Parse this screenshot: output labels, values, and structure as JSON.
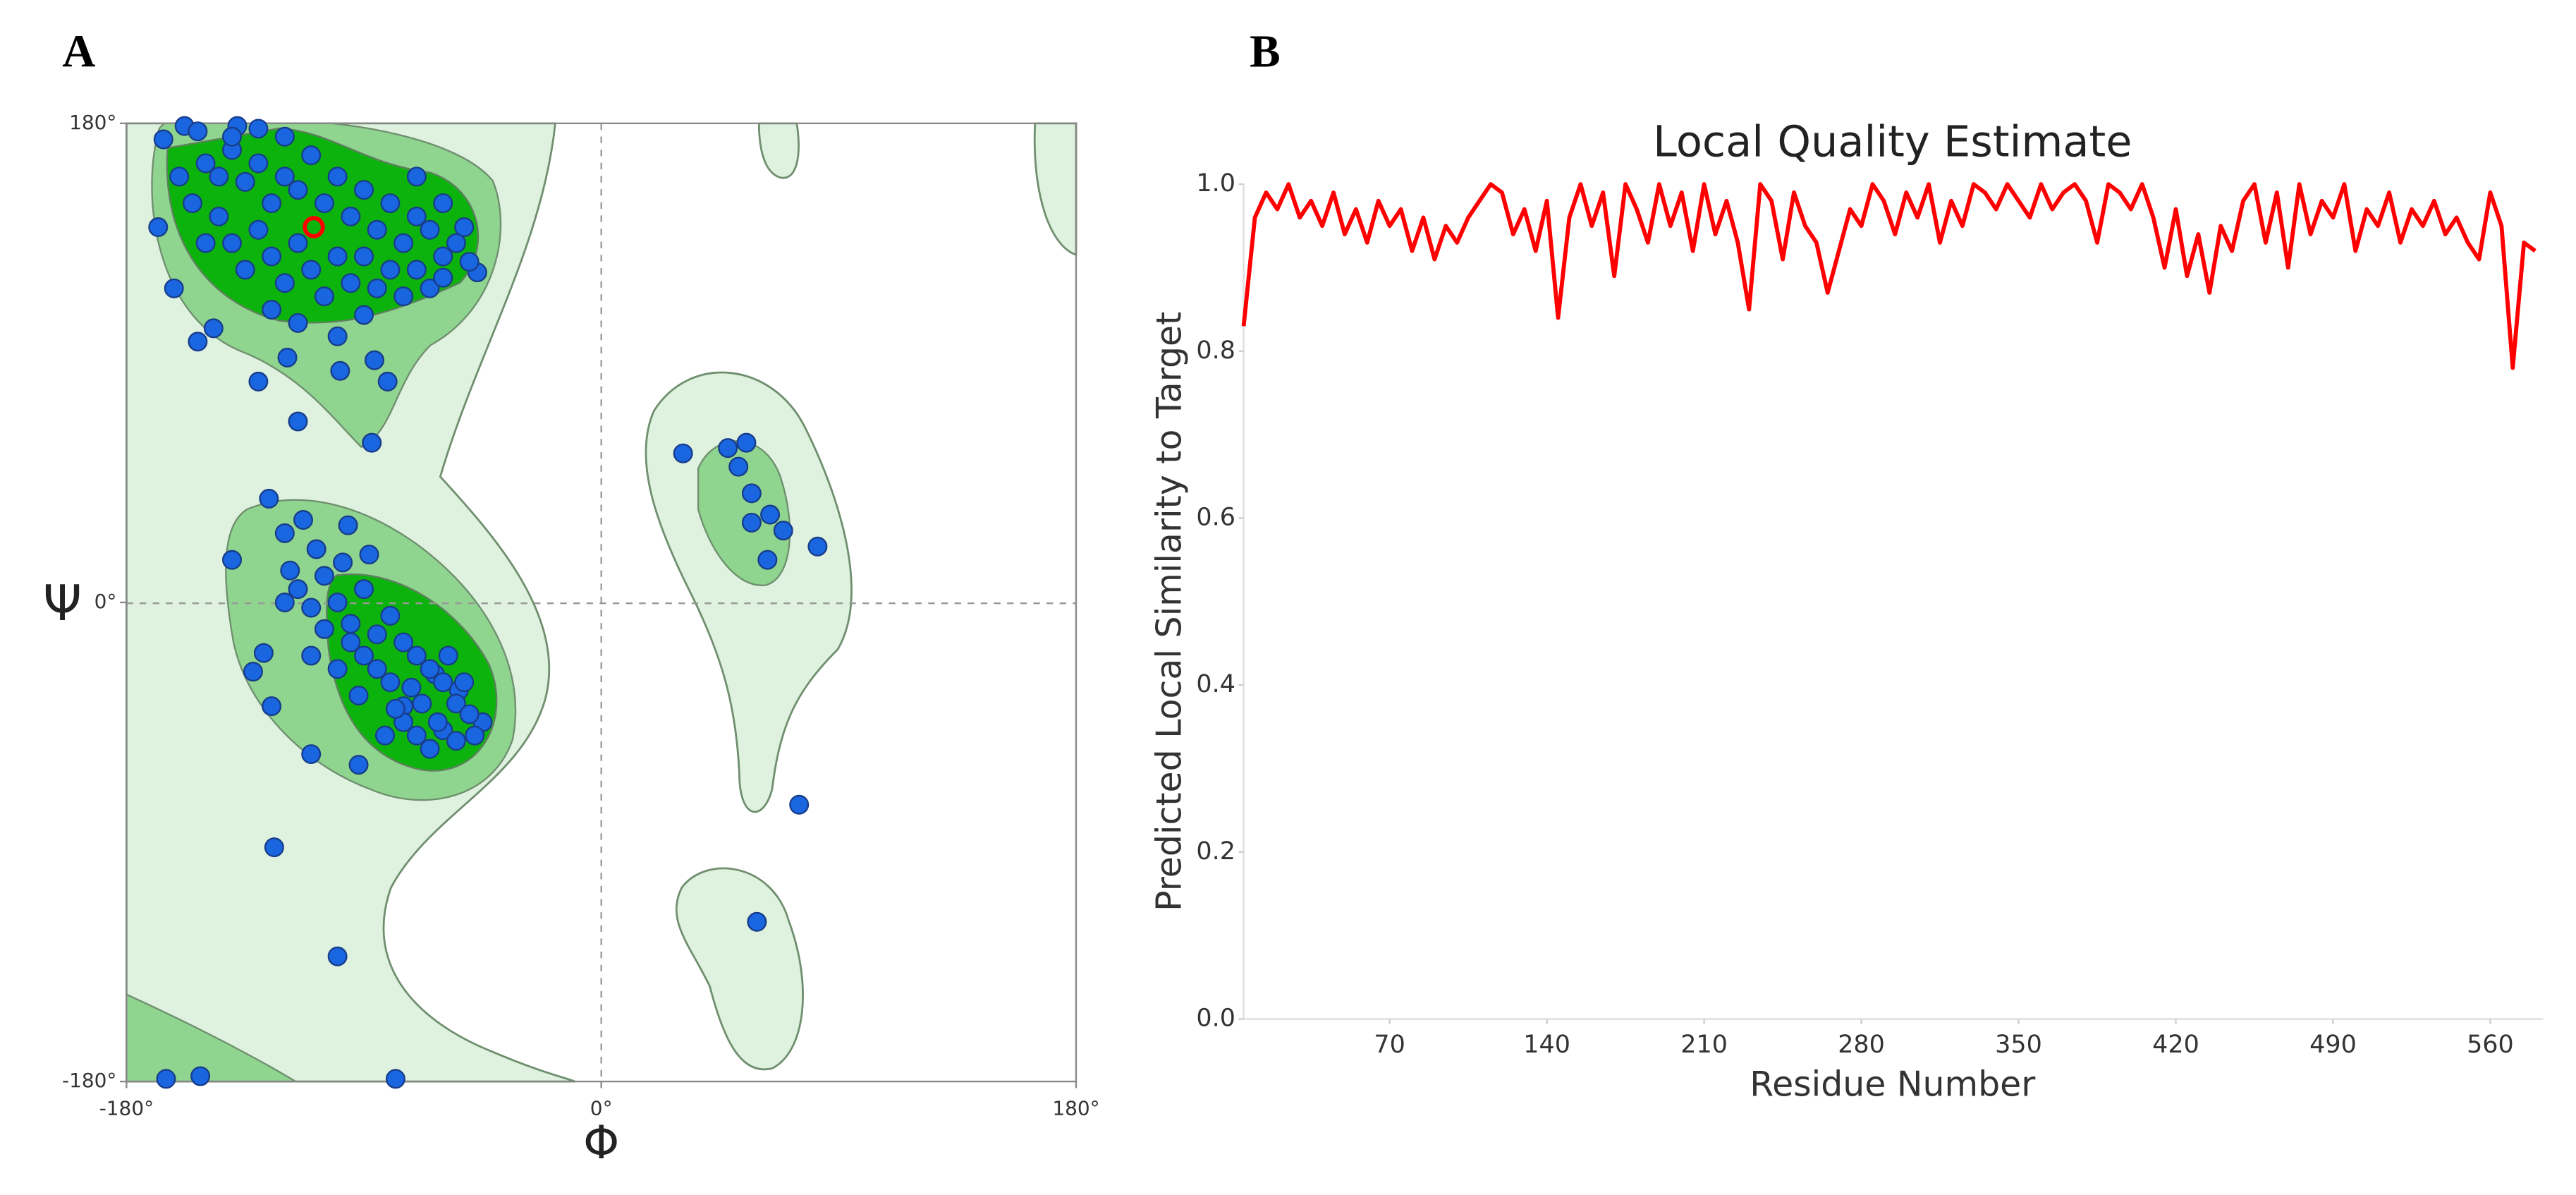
{
  "chart_data": [
    {
      "type": "scatter",
      "panel_label": "A",
      "xlabel": "Φ",
      "ylabel": "Ψ",
      "color": "#1a66e0",
      "x": [
        -166,
        -158,
        -153,
        -138,
        -130,
        -168,
        -162,
        -153,
        -147,
        -130,
        -119,
        -115,
        -87,
        -99,
        -81,
        -86,
        -47,
        -52,
        -150,
        -145,
        -140,
        -135,
        -130,
        -125,
        -120,
        -115,
        -110,
        -105,
        -100,
        -95,
        -90,
        -85,
        -80,
        -75,
        -70,
        -65,
        -60,
        -55,
        -50,
        -145,
        -140,
        -135,
        -130,
        -125,
        -120,
        -115,
        -110,
        -105,
        -100,
        -95,
        -90,
        -85,
        -80,
        -75,
        -70,
        -65,
        -60,
        -155,
        -160,
        -150,
        -125,
        -115,
        -100,
        -90,
        -70,
        -60,
        -140,
        -120,
        -126,
        -120,
        -113,
        -96,
        -140,
        -128,
        -132,
        -125,
        -124,
        -110,
        -92,
        -100,
        -45,
        -75,
        -63,
        -54,
        -115,
        -110,
        -105,
        -100,
        -95,
        -90,
        -85,
        -80,
        -75,
        -70,
        -65,
        -60,
        -55,
        -50,
        -75,
        -70,
        -65,
        -60,
        -55,
        -80,
        -85,
        -90,
        -95,
        -100,
        -105,
        -110,
        -120,
        -118,
        -108,
        -98,
        -88,
        -78,
        -68,
        -58,
        -62,
        -72,
        -82,
        -52,
        -48,
        -92,
        31,
        48,
        55,
        57,
        64,
        69,
        82,
        63,
        57,
        52,
        75,
        59,
        -165,
        -152,
        -78
      ],
      "values": [
        174,
        179,
        177,
        179,
        178,
        141,
        118,
        98,
        103,
        83,
        92,
        68,
        60,
        87,
        83,
        91,
        124,
        141,
        165,
        160,
        170,
        158,
        165,
        150,
        160,
        155,
        168,
        150,
        160,
        145,
        155,
        140,
        150,
        135,
        145,
        140,
        130,
        135,
        128,
        145,
        135,
        125,
        140,
        130,
        120,
        135,
        125,
        115,
        130,
        120,
        130,
        118,
        125,
        115,
        125,
        118,
        122,
        150,
        160,
        135,
        110,
        105,
        100,
        108,
        160,
        150,
        175,
        175,
        39,
        26,
        31,
        29,
        16,
        -19,
        -26,
        -39,
        -92,
        -57,
        -61,
        -133,
        -45,
        -39,
        -27,
        -33,
        5,
        -2,
        10,
        0,
        -8,
        5,
        -12,
        -5,
        -15,
        -20,
        -25,
        -30,
        -38,
        -42,
        -45,
        -50,
        -55,
        -48,
        -52,
        -30,
        -25,
        -20,
        -15,
        -25,
        -10,
        -20,
        0,
        12,
        20,
        15,
        18,
        -40,
        -38,
        -20,
        -45,
        -32,
        -50,
        -30,
        -50,
        -35,
        56,
        58,
        60,
        41,
        33,
        27,
        21,
        16,
        30,
        51,
        -76,
        -120,
        -179,
        -178,
        -179
      ],
      "highlight": {
        "x": -109,
        "y": 141,
        "color": "#ff0000"
      },
      "xlim": [
        -180,
        180
      ],
      "ylim": [
        -180,
        180
      ],
      "xticks": [
        {
          "value": -180,
          "label": "-180°"
        },
        {
          "value": 0,
          "label": "0°"
        },
        {
          "value": 180,
          "label": "180°"
        }
      ],
      "yticks": [
        {
          "value": -180,
          "label": "-180°"
        },
        {
          "value": 0,
          "label": "0°"
        },
        {
          "value": 180,
          "label": "180°"
        }
      ]
    },
    {
      "type": "line",
      "panel_label": "B",
      "title": "Local Quality Estimate",
      "xlabel": "Residue Number",
      "ylabel": "Predicted Local Similarity to Target",
      "color": "#ff0000",
      "x": [
        5,
        10,
        15,
        20,
        25,
        30,
        35,
        40,
        45,
        50,
        55,
        60,
        65,
        70,
        75,
        80,
        85,
        90,
        95,
        100,
        105,
        110,
        115,
        120,
        125,
        130,
        135,
        140,
        145,
        150,
        155,
        160,
        165,
        170,
        175,
        180,
        185,
        190,
        195,
        200,
        205,
        210,
        215,
        220,
        225,
        230,
        235,
        240,
        245,
        250,
        255,
        260,
        265,
        270,
        275,
        280,
        285,
        290,
        295,
        300,
        305,
        310,
        315,
        320,
        325,
        330,
        335,
        340,
        345,
        350,
        355,
        360,
        365,
        370,
        375,
        380,
        385,
        390,
        395,
        400,
        405,
        410,
        415,
        420,
        425,
        430,
        435,
        440,
        445,
        450,
        455,
        460,
        465,
        470,
        475,
        480,
        485,
        490,
        495,
        500,
        505,
        510,
        515,
        520,
        525,
        530,
        535,
        540,
        545,
        550,
        555,
        560,
        565,
        570,
        575,
        580
      ],
      "values": [
        0.83,
        0.96,
        0.99,
        0.97,
        1.0,
        0.96,
        0.98,
        0.95,
        0.99,
        0.94,
        0.97,
        0.93,
        0.98,
        0.95,
        0.97,
        0.92,
        0.96,
        0.91,
        0.95,
        0.93,
        0.96,
        0.98,
        1.0,
        0.99,
        0.94,
        0.97,
        0.92,
        0.98,
        0.84,
        0.96,
        1.0,
        0.95,
        0.99,
        0.89,
        1.0,
        0.97,
        0.93,
        1.0,
        0.95,
        0.99,
        0.92,
        1.0,
        0.94,
        0.98,
        0.93,
        0.85,
        1.0,
        0.98,
        0.91,
        0.99,
        0.95,
        0.93,
        0.87,
        0.92,
        0.97,
        0.95,
        1.0,
        0.98,
        0.94,
        0.99,
        0.96,
        1.0,
        0.93,
        0.98,
        0.95,
        1.0,
        0.99,
        0.97,
        1.0,
        0.98,
        0.96,
        1.0,
        0.97,
        0.99,
        1.0,
        0.98,
        0.93,
        1.0,
        0.99,
        0.97,
        1.0,
        0.96,
        0.9,
        0.97,
        0.89,
        0.94,
        0.87,
        0.95,
        0.92,
        0.98,
        1.0,
        0.93,
        0.99,
        0.9,
        1.0,
        0.94,
        0.98,
        0.96,
        1.0,
        0.92,
        0.97,
        0.95,
        0.99,
        0.93,
        0.97,
        0.95,
        0.98,
        0.94,
        0.96,
        0.93,
        0.91,
        0.99,
        0.95,
        0.78,
        0.93,
        0.92
      ],
      "xlim": [
        5,
        585
      ],
      "ylim": [
        0,
        1
      ],
      "xticks": [
        70,
        140,
        210,
        280,
        350,
        420,
        490,
        560
      ],
      "yticks": [
        {
          "value": 0,
          "label": "0.0"
        },
        0.2,
        0.4,
        0.6,
        0.8,
        {
          "value": 1,
          "label": "1.0"
        }
      ]
    }
  ]
}
